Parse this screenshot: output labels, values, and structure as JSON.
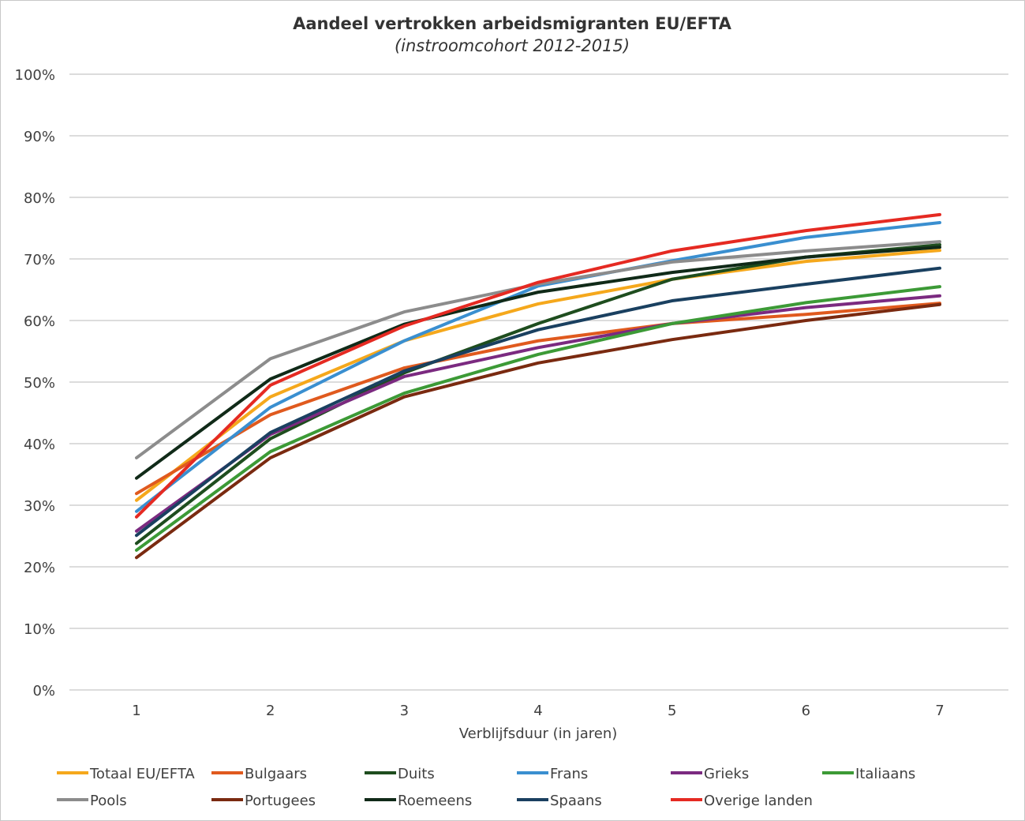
{
  "chart_data": {
    "type": "line",
    "title": "Aandeel vertrokken arbeidsmigranten EU/EFTA",
    "subtitle": "(instroomcohort 2012-2015)",
    "xlabel": "Verblijfsduur (in jaren)",
    "ylabel": "",
    "x": [
      1,
      2,
      3,
      4,
      5,
      6,
      7
    ],
    "ylim": [
      0,
      100
    ],
    "yticks": [
      "0%",
      "10%",
      "20%",
      "30%",
      "40%",
      "50%",
      "60%",
      "70%",
      "80%",
      "90%",
      "100%"
    ],
    "grid": true,
    "legend_position": "bottom",
    "series": [
      {
        "name": "Totaal EU/EFTA",
        "color": "#f5a81c",
        "values": [
          30.8,
          47.6,
          56.7,
          62.7,
          66.7,
          69.6,
          71.4
        ]
      },
      {
        "name": "Bulgaars",
        "color": "#e05a1e",
        "values": [
          31.9,
          44.7,
          52.3,
          56.7,
          59.5,
          61.0,
          62.8
        ]
      },
      {
        "name": "Duits",
        "color": "#1e4d1e",
        "values": [
          23.8,
          40.8,
          51.5,
          59.5,
          66.7,
          70.3,
          72.3
        ]
      },
      {
        "name": "Frans",
        "color": "#3a8fd0",
        "values": [
          29.0,
          45.9,
          56.7,
          65.6,
          69.7,
          73.5,
          75.9
        ]
      },
      {
        "name": "Grieks",
        "color": "#7b2a80",
        "values": [
          25.8,
          41.5,
          50.9,
          55.6,
          59.5,
          62.1,
          64.0
        ]
      },
      {
        "name": "Italiaans",
        "color": "#3c9a36",
        "values": [
          22.7,
          38.7,
          48.2,
          54.5,
          59.5,
          62.9,
          65.5
        ]
      },
      {
        "name": "Pools",
        "color": "#8c8c8c",
        "values": [
          37.7,
          53.8,
          61.4,
          65.9,
          69.5,
          71.3,
          72.8
        ]
      },
      {
        "name": "Portugees",
        "color": "#7a2a10",
        "values": [
          21.5,
          37.7,
          47.6,
          53.1,
          56.9,
          60.0,
          62.6
        ]
      },
      {
        "name": "Roemeens",
        "color": "#102a18",
        "values": [
          34.4,
          50.5,
          59.4,
          64.6,
          67.8,
          70.3,
          71.9
        ]
      },
      {
        "name": "Spaans",
        "color": "#1a4060",
        "values": [
          25.1,
          41.8,
          51.8,
          58.5,
          63.2,
          65.9,
          68.5
        ]
      },
      {
        "name": "Overige landen",
        "color": "#e52a22",
        "values": [
          28.1,
          49.5,
          59.1,
          66.2,
          71.3,
          74.6,
          77.2
        ]
      }
    ]
  }
}
